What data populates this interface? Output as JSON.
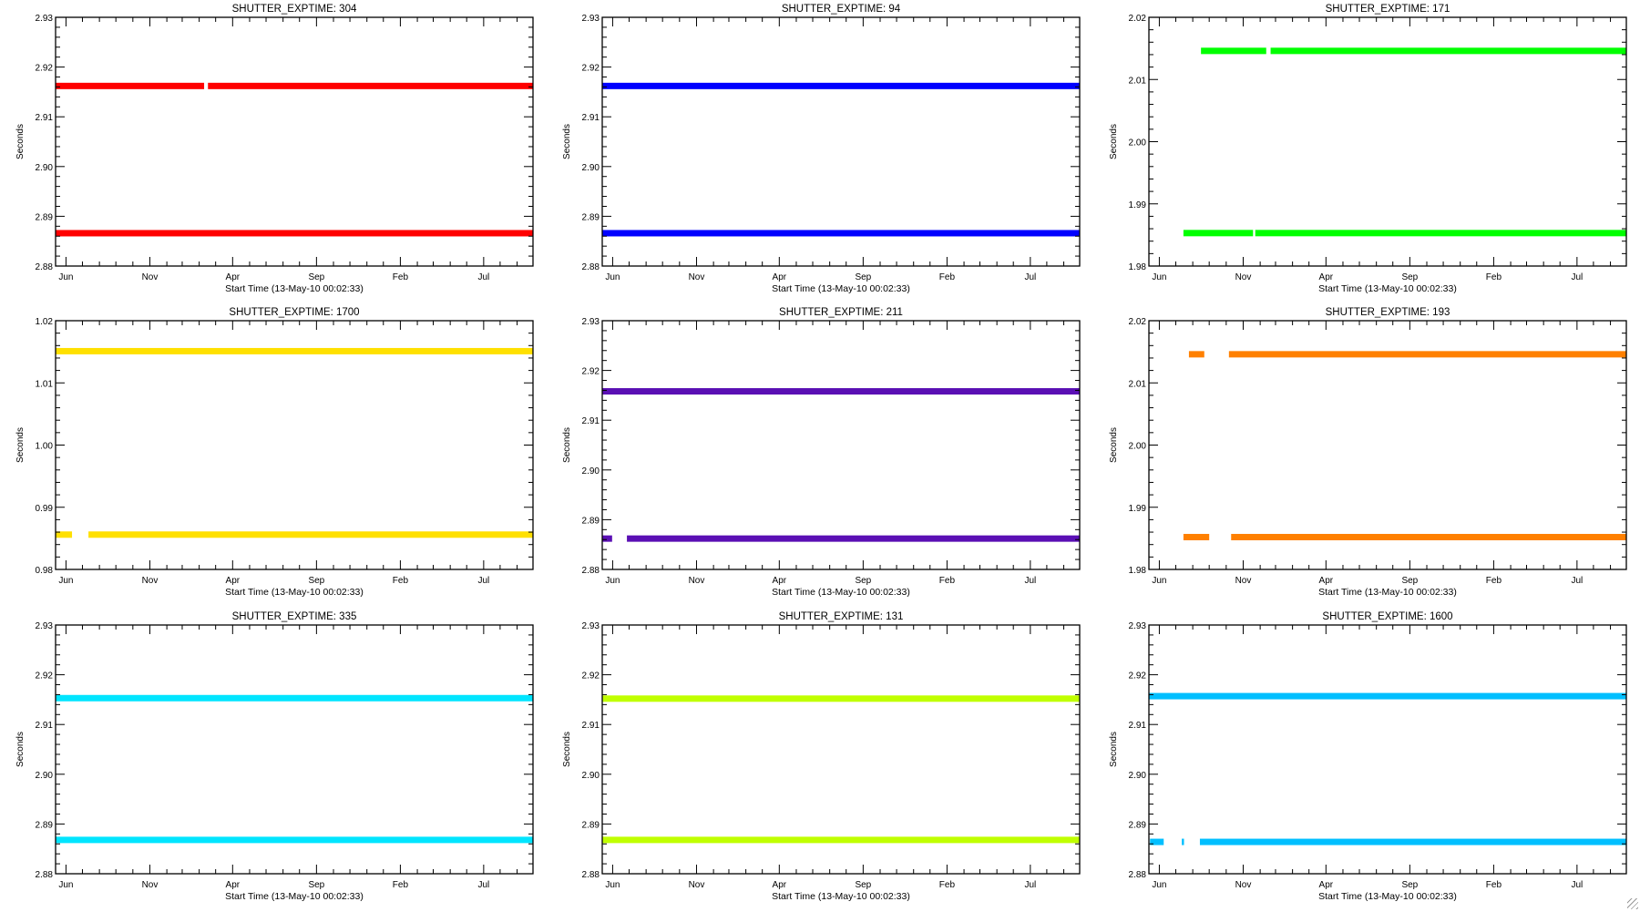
{
  "window": {
    "resize_grip": "resize-grip-icon"
  },
  "chart_data": [
    {
      "type": "scatter",
      "title": "SHUTTER_EXPTIME: 304",
      "color": "#ff0000",
      "ylim": [
        2.88,
        2.93
      ],
      "yticks": [
        "2.88",
        "2.89",
        "2.90",
        "2.91",
        "2.92",
        "2.93"
      ],
      "series": [
        {
          "name": "upper",
          "value": 2.9162,
          "segments": [
            [
              0,
              271
            ],
            [
              278,
              871
            ]
          ]
        },
        {
          "name": "lower",
          "value": 2.8866,
          "segments": [
            [
              0,
              871
            ]
          ]
        }
      ]
    },
    {
      "type": "scatter",
      "title": "SHUTTER_EXPTIME: 94",
      "color": "#0000ff",
      "ylim": [
        2.88,
        2.93
      ],
      "yticks": [
        "2.88",
        "2.89",
        "2.90",
        "2.91",
        "2.92",
        "2.93"
      ],
      "series": [
        {
          "name": "upper",
          "value": 2.9162,
          "segments": [
            [
              0,
              871
            ]
          ]
        },
        {
          "name": "lower",
          "value": 2.8866,
          "segments": [
            [
              0,
              871
            ]
          ]
        }
      ]
    },
    {
      "type": "scatter",
      "title": "SHUTTER_EXPTIME: 171",
      "color": "#00ff00",
      "ylim": [
        1.98,
        2.02
      ],
      "yticks": [
        "1.98",
        "1.99",
        "2.00",
        "2.01",
        "2.02"
      ],
      "series": [
        {
          "name": "upper",
          "value": 2.0146,
          "segments": [
            [
              95,
              214
            ],
            [
              222,
              871
            ]
          ]
        },
        {
          "name": "lower",
          "value": 1.9853,
          "segments": [
            [
              63,
              190
            ],
            [
              194,
              871
            ]
          ]
        }
      ]
    },
    {
      "type": "scatter",
      "title": "SHUTTER_EXPTIME: 1700",
      "color": "#ffe000",
      "ylim": [
        0.98,
        1.02
      ],
      "yticks": [
        "0.98",
        "0.99",
        "1.00",
        "1.01",
        "1.02"
      ],
      "series": [
        {
          "name": "upper",
          "value": 1.0151,
          "segments": [
            [
              0,
              871
            ]
          ]
        },
        {
          "name": "lower",
          "value": 0.9856,
          "segments": [
            [
              0,
              30
            ],
            [
              60,
              871
            ]
          ]
        }
      ]
    },
    {
      "type": "scatter",
      "title": "SHUTTER_EXPTIME: 211",
      "color": "#5a0fb4",
      "ylim": [
        2.88,
        2.93
      ],
      "yticks": [
        "2.88",
        "2.89",
        "2.90",
        "2.91",
        "2.92",
        "2.93"
      ],
      "series": [
        {
          "name": "upper",
          "value": 2.9158,
          "segments": [
            [
              0,
              871
            ]
          ]
        },
        {
          "name": "lower",
          "value": 2.8862,
          "segments": [
            [
              0,
              18
            ],
            [
              45,
              871
            ]
          ]
        }
      ]
    },
    {
      "type": "scatter",
      "title": "SHUTTER_EXPTIME: 193",
      "color": "#ff8000",
      "ylim": [
        1.98,
        2.02
      ],
      "yticks": [
        "1.98",
        "1.99",
        "2.00",
        "2.01",
        "2.02"
      ],
      "series": [
        {
          "name": "upper",
          "value": 2.0146,
          "segments": [
            [
              73,
              101
            ],
            [
              146,
              871
            ]
          ]
        },
        {
          "name": "lower",
          "value": 1.9852,
          "segments": [
            [
              63,
              110
            ],
            [
              150,
              871
            ]
          ]
        }
      ]
    },
    {
      "type": "scatter",
      "title": "SHUTTER_EXPTIME: 335",
      "color": "#00e5ff",
      "ylim": [
        2.88,
        2.93
      ],
      "yticks": [
        "2.88",
        "2.89",
        "2.90",
        "2.91",
        "2.92",
        "2.93"
      ],
      "series": [
        {
          "name": "upper",
          "value": 2.9153,
          "segments": [
            [
              0,
              871
            ]
          ]
        },
        {
          "name": "lower",
          "value": 2.8868,
          "segments": [
            [
              0,
              871
            ]
          ]
        }
      ]
    },
    {
      "type": "scatter",
      "title": "SHUTTER_EXPTIME: 131",
      "color": "#c0ff00",
      "ylim": [
        2.88,
        2.93
      ],
      "yticks": [
        "2.88",
        "2.89",
        "2.90",
        "2.91",
        "2.92",
        "2.93"
      ],
      "series": [
        {
          "name": "upper",
          "value": 2.9152,
          "segments": [
            [
              0,
              871
            ]
          ]
        },
        {
          "name": "lower",
          "value": 2.8868,
          "segments": [
            [
              0,
              871
            ]
          ]
        }
      ]
    },
    {
      "type": "scatter",
      "title": "SHUTTER_EXPTIME: 1600",
      "color": "#00bfff",
      "ylim": [
        2.88,
        2.93
      ],
      "yticks": [
        "2.88",
        "2.89",
        "2.90",
        "2.91",
        "2.92",
        "2.93"
      ],
      "series": [
        {
          "name": "upper",
          "value": 2.9157,
          "segments": [
            [
              0,
              871
            ]
          ]
        },
        {
          "name": "lower",
          "value": 2.8864,
          "segments": [
            [
              2,
              27
            ],
            [
              60,
              64
            ],
            [
              93,
              871
            ]
          ]
        }
      ]
    }
  ],
  "shared_axes": {
    "ylabel": "Seconds",
    "xlabel": "Start Time (13-May-10 00:02:33)",
    "x_units": "days since 13-May-10",
    "xlim": [
      0,
      871
    ],
    "xticks": [
      {
        "label": "Jun",
        "day": 19
      },
      {
        "label": "Nov",
        "day": 172
      },
      {
        "label": "Apr",
        "day": 323
      },
      {
        "label": "Sep",
        "day": 476
      },
      {
        "label": "Feb",
        "day": 629
      },
      {
        "label": "Jul",
        "day": 781
      }
    ],
    "minor_tick_days": [
      49,
      80,
      110,
      141,
      203,
      231,
      262,
      292,
      354,
      384,
      415,
      445,
      507,
      537,
      568,
      598,
      660,
      689,
      720,
      750,
      811,
      842
    ]
  }
}
